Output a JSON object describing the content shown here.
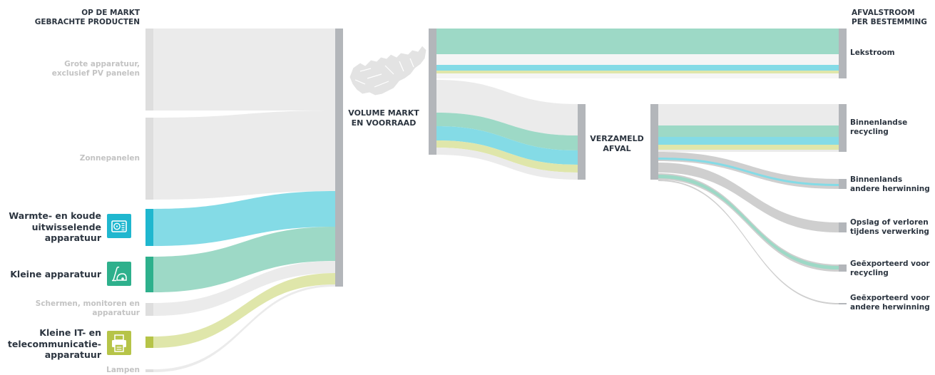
{
  "colors": {
    "node": "#b3b6ba",
    "grey_flow": "#ebebeb",
    "grey_flow_dark": "#cfcfcf",
    "cyan": "#84dbe6",
    "green": "#9dd9c6",
    "lime": "#dfe6aa",
    "text_dark": "#2c3540",
    "text_dim": "#c3c3c3",
    "icon_cyan": "#1fb7cf",
    "icon_green": "#2eb08c",
    "icon_lime": "#b6c448"
  },
  "headers": {
    "left": "OP DE MARKT\nGEBRACHTE PRODUCTEN",
    "right": "AFVALSTROOM\nPER BESTEMMING"
  },
  "categories": [
    {
      "label": "Grote apparatuur, exclusief PV panelen",
      "emphasis": false,
      "icon": null,
      "color": "grey"
    },
    {
      "label": "Zonnepanelen",
      "emphasis": false,
      "icon": null,
      "color": "grey"
    },
    {
      "label": "Warmte- en koude uitwisselende apparatuur",
      "emphasis": true,
      "icon": "air-conditioner-icon",
      "color": "cyan"
    },
    {
      "label": "Kleine apparatuur",
      "emphasis": true,
      "icon": "vacuum-cleaner-icon",
      "color": "green"
    },
    {
      "label": "Schermen, monitoren en apparatuur",
      "emphasis": false,
      "icon": null,
      "color": "grey"
    },
    {
      "label": "Kleine IT- en telecommunicatie-apparatuur",
      "emphasis": true,
      "icon": "printer-icon",
      "color": "lime"
    },
    {
      "label": "Lampen",
      "emphasis": false,
      "icon": null,
      "color": "grey"
    }
  ],
  "nodes": {
    "market": "VOLUME MARKT\nEN VOORRAAD",
    "collected": "VERZAMELD\nAFVAL"
  },
  "destinations": [
    "Lekstroom",
    "Binnenlandse recycling",
    "Binnenlands andere herwinning",
    "Opslag of verloren tijdens verwerking",
    "Geëxporteerd voor recycling",
    "Geëxporteerd voor andere herwinning"
  ]
}
